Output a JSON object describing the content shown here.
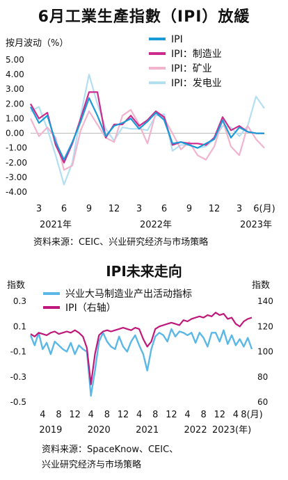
{
  "chart_data": [
    {
      "type": "line",
      "title": "6月工業生產指數（IPI）放緩",
      "ylabel": "按月波动（%）",
      "ylim": [
        -4,
        5
      ],
      "yticks": [
        "5.00",
        "4.00",
        "3.00",
        "2.00",
        "1.00",
        "0.00",
        "-1.00",
        "-2.00",
        "-3.00",
        "-4.00"
      ],
      "xticks": [
        "3",
        "6",
        "9",
        "12",
        "3",
        "6",
        "9",
        "12",
        "3",
        "6(月)"
      ],
      "years": [
        "2021年",
        "2022年",
        "2023年"
      ],
      "legend_position": "top-right",
      "source": "资料来源：CEIC、兴业研究经济与市场策略",
      "x": [
        "2021-02",
        "2021-03",
        "2021-04",
        "2021-05",
        "2021-06",
        "2021-07",
        "2021-08",
        "2021-09",
        "2021-10",
        "2021-11",
        "2021-12",
        "2022-01",
        "2022-02",
        "2022-03",
        "2022-04",
        "2022-05",
        "2022-06",
        "2022-07",
        "2022-08",
        "2022-09",
        "2022-10",
        "2022-11",
        "2022-12",
        "2023-01",
        "2023-02",
        "2023-03",
        "2023-04",
        "2023-05",
        "2023-06"
      ],
      "series": [
        {
          "name": "IPI",
          "color": "#1a9ad6",
          "values": [
            1.8,
            0.7,
            1.2,
            -0.6,
            -1.8,
            -0.6,
            0.8,
            2.4,
            1.2,
            -0.2,
            0.5,
            0.7,
            1.0,
            0.3,
            0.8,
            1.4,
            0.9,
            -0.7,
            -0.6,
            -0.8,
            -1.0,
            -0.7,
            -0.4,
            0.9,
            -0.3,
            0.4,
            0.1,
            0.0,
            0.0
          ]
        },
        {
          "name": "IPI：制造业",
          "color": "#cc2a8c",
          "values": [
            2.0,
            1.0,
            1.4,
            -0.8,
            -2.0,
            -0.7,
            1.0,
            2.8,
            2.8,
            -0.3,
            0.6,
            0.6,
            1.2,
            0.5,
            0.9,
            1.5,
            1.1,
            -0.8,
            -0.6,
            -0.7,
            -0.7,
            -0.8,
            -0.3,
            1.1,
            0.2,
            0.5,
            0.1,
            0.0,
            0.0
          ]
        },
        {
          "name": "IPI：矿业",
          "color": "#f2b3cd",
          "values": [
            1.0,
            -0.2,
            0.4,
            -0.3,
            -2.5,
            -2.2,
            0.2,
            1.5,
            0.6,
            -0.3,
            -0.6,
            1.2,
            1.6,
            0.6,
            -0.7,
            1.4,
            1.0,
            0.0,
            -1.1,
            -0.6,
            -1.5,
            -1.8,
            -0.9,
            0.9,
            -0.9,
            -1.5,
            0.5,
            -0.4,
            -1.0
          ]
        },
        {
          "name": "IPI：发电业",
          "color": "#b3dff3",
          "values": [
            1.5,
            1.8,
            0.3,
            -1.5,
            -3.5,
            -2.0,
            1.2,
            4.0,
            2.0,
            0.3,
            -0.5,
            0.4,
            0.3,
            0.3,
            0.2,
            1.2,
            1.3,
            -1.2,
            -0.8,
            -0.8,
            -1.0,
            -0.9,
            -0.4,
            0.5,
            0.4,
            -0.2,
            0.5,
            2.5,
            1.7
          ]
        }
      ]
    },
    {
      "type": "line",
      "title": "IPI未来走向",
      "ylabel_left": "指数",
      "ylabel_right": "指数",
      "ylim_left": [
        -0.5,
        0.3
      ],
      "ylim_right": [
        60,
        140
      ],
      "yticks_left": [
        "0.3",
        "0.1",
        "-0.1",
        "-0.3",
        "-0.5"
      ],
      "yticks_right": [
        "140",
        "120",
        "100",
        "80",
        "60"
      ],
      "xticks": [
        "4",
        "8",
        "12",
        "4",
        "8",
        "12",
        "4",
        "8",
        "12",
        "4",
        "8",
        "12",
        "4",
        "8(月)"
      ],
      "years": [
        "2019",
        "2020",
        "2021",
        "2022",
        "2023(年)"
      ],
      "legend_position": "top",
      "source": "资料来源：SpaceKnow、CEIC、",
      "source_line2": "兴业研究经济与市场策略",
      "x": [
        "2019-01",
        "2019-02",
        "2019-03",
        "2019-04",
        "2019-05",
        "2019-06",
        "2019-07",
        "2019-08",
        "2019-09",
        "2019-10",
        "2019-11",
        "2019-12",
        "2020-01",
        "2020-02",
        "2020-03",
        "2020-04",
        "2020-05",
        "2020-06",
        "2020-07",
        "2020-08",
        "2020-09",
        "2020-10",
        "2020-11",
        "2020-12",
        "2021-01",
        "2021-02",
        "2021-03",
        "2021-04",
        "2021-05",
        "2021-06",
        "2021-07",
        "2021-08",
        "2021-09",
        "2021-10",
        "2021-11",
        "2021-12",
        "2022-01",
        "2022-02",
        "2022-03",
        "2022-04",
        "2022-05",
        "2022-06",
        "2022-07",
        "2022-08",
        "2022-09",
        "2022-10",
        "2022-11",
        "2022-12",
        "2023-01",
        "2023-02",
        "2023-03",
        "2023-04",
        "2023-05",
        "2023-06",
        "2023-07",
        "2023-08"
      ],
      "series": [
        {
          "name": "兴业大马制造业产出活动指标",
          "color": "#5bb8e6",
          "axis": "left",
          "values": [
            0.03,
            -0.05,
            0.05,
            -0.08,
            -0.03,
            -0.12,
            -0.02,
            -0.05,
            -0.08,
            -0.1,
            -0.03,
            -0.12,
            -0.05,
            -0.08,
            -0.1,
            -0.45,
            -0.25,
            -0.02,
            0.05,
            -0.02,
            -0.06,
            -0.08,
            0.02,
            -0.06,
            -0.1,
            -0.02,
            0.03,
            -0.05,
            -0.12,
            -0.25,
            -0.08,
            0.02,
            0.05,
            0.03,
            -0.02,
            0.08,
            0.02,
            0.06,
            0.05,
            0.03,
            0.05,
            -0.03,
            0.05,
            0.01,
            -0.06,
            0.05,
            0.05,
            -0.02,
            0.07,
            -0.04,
            0.03,
            -0.05,
            0.0,
            -0.06,
            0.01,
            -0.08
          ]
        },
        {
          "name": "IPI（右轴）",
          "color": "#c0187a",
          "axis": "right",
          "values": [
            114,
            112,
            115,
            114,
            113,
            115,
            116,
            114,
            115,
            116,
            115,
            117,
            115,
            112,
            103,
            74,
            98,
            113,
            116,
            117,
            116,
            117,
            118,
            119,
            118,
            117,
            119,
            118,
            110,
            104,
            108,
            118,
            120,
            121,
            122,
            123,
            122,
            121,
            125,
            124,
            126,
            127,
            128,
            127,
            129,
            128,
            131,
            129,
            130,
            126,
            127,
            122,
            120,
            124,
            126,
            127
          ]
        }
      ]
    }
  ]
}
